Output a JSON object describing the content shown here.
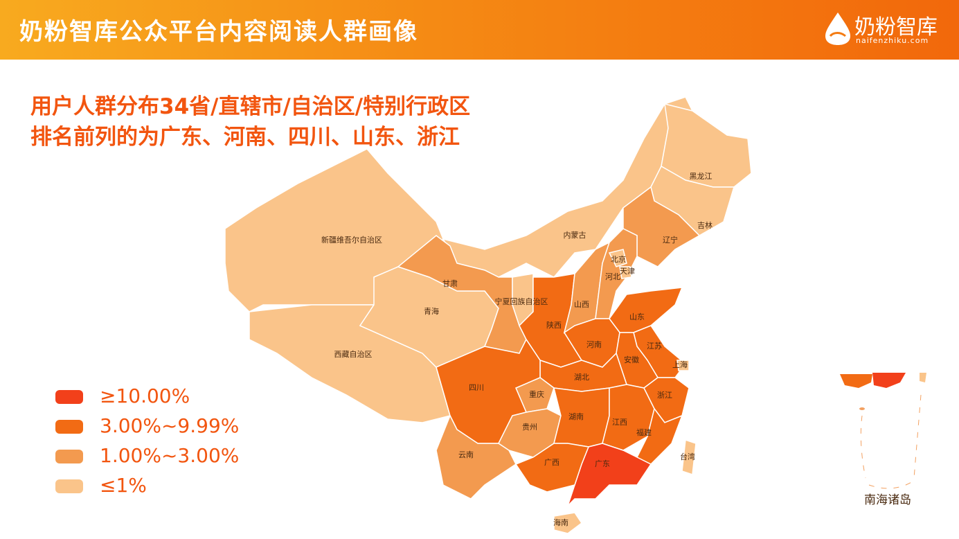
{
  "header": {
    "title": "奶粉智库公众平台内容阅读人群画像",
    "logo": {
      "name": "奶粉智库",
      "url": "naifenzhiku.com"
    }
  },
  "headline": [
    "用户人群分布34省/直辖市/自治区/特别行政区",
    "排名前列的为广东、河南、四川、山东、浙江"
  ],
  "legend": [
    {
      "label": "≥10.00%",
      "color": "#f2401a"
    },
    {
      "label": "3.00%~9.99%",
      "color": "#f26b14"
    },
    {
      "label": "1.00%~3.00%",
      "color": "#f39a4f"
    },
    {
      "label": "≤1%",
      "color": "#fac48a"
    }
  ],
  "regions": [
    {
      "name": "新疆维吾尔自治区",
      "level": 3
    },
    {
      "name": "西藏自治区",
      "level": 3
    },
    {
      "name": "青海",
      "level": 3
    },
    {
      "name": "内蒙古",
      "level": 3
    },
    {
      "name": "黑龙江",
      "level": 3
    },
    {
      "name": "吉林",
      "level": 3
    },
    {
      "name": "辽宁",
      "level": 2
    },
    {
      "name": "甘肃",
      "level": 2
    },
    {
      "name": "宁夏回族自治区",
      "level": 3
    },
    {
      "name": "陕西",
      "level": 1
    },
    {
      "name": "山西",
      "level": 2
    },
    {
      "name": "河北",
      "level": 2
    },
    {
      "name": "北京",
      "level": 3
    },
    {
      "name": "天津",
      "level": 3
    },
    {
      "name": "山东",
      "level": 1
    },
    {
      "name": "河南",
      "level": 1
    },
    {
      "name": "江苏",
      "level": 1
    },
    {
      "name": "安徽",
      "level": 1
    },
    {
      "name": "上海",
      "level": 3
    },
    {
      "name": "湖北",
      "level": 1
    },
    {
      "name": "重庆",
      "level": 2
    },
    {
      "name": "四川",
      "level": 1
    },
    {
      "name": "贵州",
      "level": 2
    },
    {
      "name": "云南",
      "level": 2
    },
    {
      "name": "湖南",
      "level": 1
    },
    {
      "name": "江西",
      "level": 1
    },
    {
      "name": "浙江",
      "level": 1
    },
    {
      "name": "福建",
      "level": 1
    },
    {
      "name": "广东",
      "level": 0
    },
    {
      "name": "广西",
      "level": 1
    },
    {
      "name": "海南",
      "level": 3
    },
    {
      "name": "台湾",
      "level": 3
    }
  ],
  "inset_label": "南海诸岛"
}
